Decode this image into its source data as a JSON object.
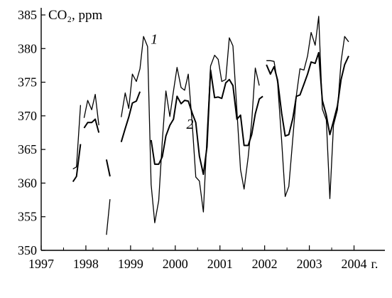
{
  "chart_data": {
    "type": "line",
    "ylabel": "CO₂, ppm",
    "x_unit": "г.",
    "xlim": [
      1997,
      2004.5
    ],
    "ylim": [
      350,
      385
    ],
    "x_ticks": [
      1997,
      1998,
      1999,
      2000,
      2001,
      2002,
      2003,
      2004
    ],
    "x_tick_labels": [
      "1997",
      "1998",
      "1999",
      "2000",
      "2001",
      "2002",
      "2003",
      "2004"
    ],
    "y_ticks": [
      350,
      355,
      360,
      365,
      370,
      375,
      380,
      385
    ],
    "y_tick_labels": [
      "350",
      "355",
      "360",
      "365",
      "370",
      "375",
      "380",
      "385"
    ],
    "grid": false,
    "series": [
      {
        "name": "1",
        "stroke_width": 1.3,
        "segments": [
          [
            [
              1997.71,
              362.1
            ],
            [
              1997.79,
              362.4
            ],
            [
              1997.88,
              371.6
            ]
          ],
          [
            [
              1997.96,
              369.7
            ],
            [
              1998.04,
              372.3
            ],
            [
              1998.13,
              370.9
            ],
            [
              1998.21,
              373.2
            ],
            [
              1998.29,
              368.6
            ]
          ],
          [
            [
              1998.46,
              352.3
            ],
            [
              1998.54,
              357.6
            ]
          ],
          [
            [
              1998.79,
              369.8
            ],
            [
              1998.88,
              373.4
            ],
            [
              1998.96,
              371.1
            ],
            [
              1999.04,
              376.2
            ],
            [
              1999.13,
              375.1
            ],
            [
              1999.21,
              377.0
            ],
            [
              1999.29,
              381.8
            ],
            [
              1999.38,
              380.3
            ],
            [
              1999.46,
              359.8
            ],
            [
              1999.54,
              354.1
            ],
            [
              1999.63,
              357.4
            ],
            [
              1999.71,
              366.2
            ],
            [
              1999.79,
              373.7
            ],
            [
              1999.88,
              369.9
            ],
            [
              1999.96,
              373.7
            ],
            [
              2000.04,
              377.2
            ],
            [
              2000.13,
              374.2
            ],
            [
              2000.21,
              373.8
            ],
            [
              2000.29,
              376.2
            ],
            [
              2000.38,
              368.8
            ],
            [
              2000.46,
              360.9
            ],
            [
              2000.54,
              360.3
            ],
            [
              2000.63,
              355.7
            ],
            [
              2000.71,
              367.1
            ],
            [
              2000.79,
              377.4
            ],
            [
              2000.88,
              379.0
            ],
            [
              2000.96,
              378.4
            ],
            [
              2001.04,
              375.1
            ],
            [
              2001.13,
              375.4
            ],
            [
              2001.21,
              381.6
            ],
            [
              2001.29,
              380.4
            ],
            [
              2001.38,
              370.8
            ],
            [
              2001.46,
              362.0
            ],
            [
              2001.54,
              359.1
            ],
            [
              2001.63,
              363.8
            ],
            [
              2001.71,
              369.1
            ],
            [
              2001.79,
              377.1
            ],
            [
              2001.88,
              374.5
            ]
          ],
          [
            [
              2002.04,
              378.2
            ],
            [
              2002.13,
              378.2
            ],
            [
              2002.21,
              378.1
            ],
            [
              2002.29,
              374.9
            ],
            [
              2002.38,
              366.3
            ],
            [
              2002.46,
              358.0
            ],
            [
              2002.54,
              359.5
            ],
            [
              2002.63,
              366.6
            ],
            [
              2002.71,
              373.0
            ],
            [
              2002.79,
              377.0
            ],
            [
              2002.88,
              376.8
            ],
            [
              2002.96,
              378.9
            ],
            [
              2003.04,
              382.4
            ],
            [
              2003.13,
              380.5
            ],
            [
              2003.21,
              384.8
            ],
            [
              2003.29,
              371.0
            ],
            [
              2003.38,
              369.4
            ],
            [
              2003.46,
              357.7
            ],
            [
              2003.54,
              368.6
            ],
            [
              2003.63,
              370.9
            ],
            [
              2003.71,
              378.1
            ],
            [
              2003.79,
              381.8
            ],
            [
              2003.88,
              381.0
            ]
          ]
        ]
      },
      {
        "name": "2",
        "stroke_width": 2.0,
        "segments": [
          [
            [
              1997.71,
              360.2
            ],
            [
              1997.79,
              361.0
            ],
            [
              1997.88,
              365.8
            ]
          ],
          [
            [
              1997.96,
              368.2
            ],
            [
              1998.04,
              369.0
            ],
            [
              1998.13,
              369.0
            ],
            [
              1998.21,
              369.5
            ],
            [
              1998.29,
              367.5
            ]
          ],
          [
            [
              1998.46,
              363.5
            ],
            [
              1998.54,
              361.0
            ]
          ],
          [
            [
              1998.79,
              366.1
            ],
            [
              1998.88,
              368.1
            ],
            [
              1998.96,
              369.8
            ],
            [
              1999.04,
              371.9
            ],
            [
              1999.13,
              372.2
            ],
            [
              1999.21,
              373.6
            ]
          ],
          [
            [
              1999.46,
              366.4
            ],
            [
              1999.54,
              362.8
            ],
            [
              1999.63,
              362.8
            ],
            [
              1999.71,
              363.9
            ],
            [
              1999.79,
              367.0
            ],
            [
              1999.88,
              368.6
            ],
            [
              1999.96,
              369.5
            ],
            [
              2000.04,
              372.9
            ],
            [
              2000.13,
              371.8
            ],
            [
              2000.21,
              372.3
            ],
            [
              2000.29,
              372.2
            ],
            [
              2000.38,
              370.4
            ],
            [
              2000.46,
              369.0
            ],
            [
              2000.54,
              364.0
            ],
            [
              2000.63,
              361.3
            ],
            [
              2000.71,
              365.4
            ],
            [
              2000.79,
              376.8
            ],
            [
              2000.88,
              372.7
            ],
            [
              2000.96,
              372.8
            ],
            [
              2001.04,
              372.6
            ],
            [
              2001.13,
              374.9
            ],
            [
              2001.21,
              375.4
            ],
            [
              2001.29,
              374.5
            ],
            [
              2001.38,
              369.5
            ],
            [
              2001.46,
              370.1
            ],
            [
              2001.54,
              365.6
            ],
            [
              2001.63,
              365.6
            ],
            [
              2001.71,
              367.2
            ],
            [
              2001.79,
              370.3
            ],
            [
              2001.88,
              372.5
            ],
            [
              2001.96,
              372.9
            ]
          ],
          [
            [
              2002.04,
              377.6
            ],
            [
              2002.13,
              376.2
            ],
            [
              2002.21,
              377.3
            ],
            [
              2002.29,
              375.3
            ],
            [
              2002.38,
              370.4
            ],
            [
              2002.46,
              367.0
            ],
            [
              2002.54,
              367.2
            ],
            [
              2002.63,
              369.6
            ],
            [
              2002.71,
              372.9
            ],
            [
              2002.79,
              373.1
            ],
            [
              2002.88,
              374.7
            ],
            [
              2002.96,
              376.2
            ],
            [
              2003.04,
              378.0
            ],
            [
              2003.13,
              377.8
            ],
            [
              2003.21,
              379.4
            ],
            [
              2003.29,
              372.3
            ],
            [
              2003.38,
              370.1
            ],
            [
              2003.46,
              367.2
            ],
            [
              2003.54,
              369.2
            ],
            [
              2003.63,
              371.5
            ],
            [
              2003.71,
              375.4
            ],
            [
              2003.79,
              377.6
            ],
            [
              2003.88,
              378.9
            ]
          ]
        ]
      }
    ],
    "series_labels": [
      {
        "text": "1",
        "x": 1999.45,
        "y": 380.7
      },
      {
        "text": "2",
        "x": 2000.25,
        "y": 368.1
      }
    ]
  }
}
